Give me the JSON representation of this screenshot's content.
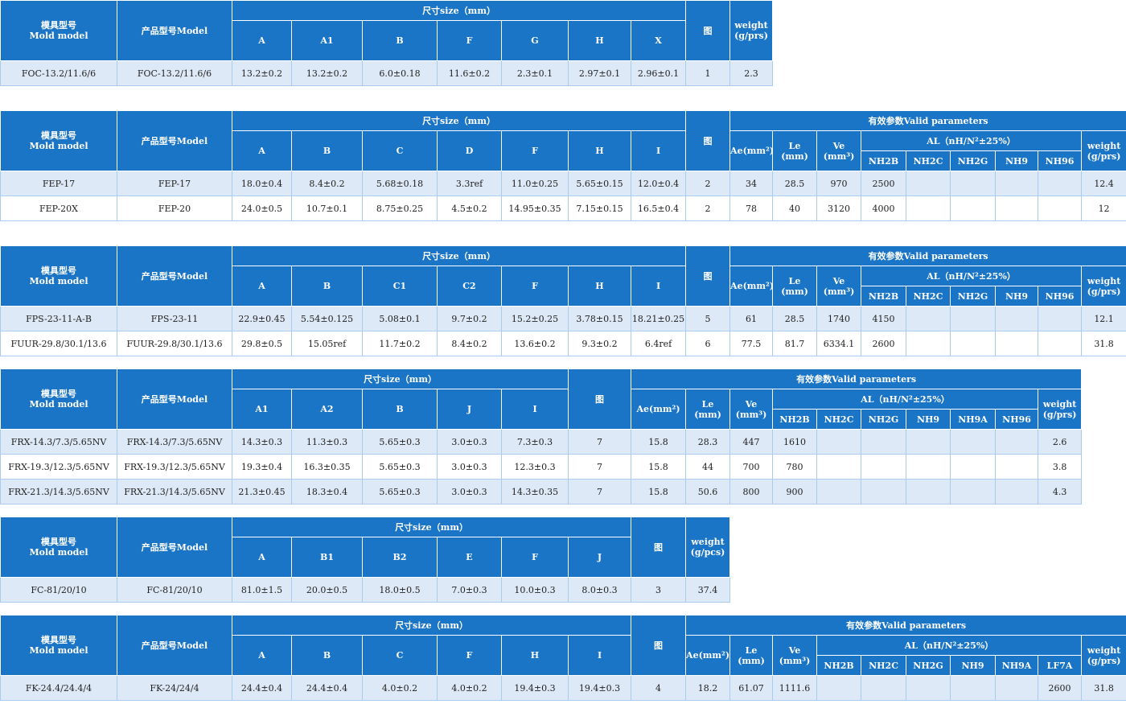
{
  "tables": [
    {
      "mold_header": [
        "模具型号",
        "Mold model"
      ],
      "model_header": "产品型号Model",
      "size_header": "尺寸size（mm）",
      "dims": [
        "A",
        "A1",
        "B",
        "F",
        "G",
        "H",
        "X"
      ],
      "fig_header": "图",
      "weight_header": [
        "weight",
        "(g/prs)"
      ],
      "rows": [
        {
          "mold": "FOC-13.2/11.6/6",
          "model": "FOC-13.2/11.6/6",
          "dims": [
            "13.2±0.2",
            "13.2±0.2",
            "6.0±0.18",
            "11.6±0.2",
            "2.3±0.1",
            "2.97±0.1",
            "2.96±0.1"
          ],
          "fig": "1",
          "weight": "2.3"
        }
      ]
    },
    {
      "mold_header": [
        "模具型号",
        "Mold model"
      ],
      "model_header": "产品型号Model",
      "size_header": "尺寸size（mm）",
      "dims": [
        "A",
        "B",
        "C",
        "D",
        "F",
        "H",
        "I"
      ],
      "fig_header": "图",
      "params_header": "有效参数Valid parameters",
      "param_headers": [
        [
          "Ae(mm²)"
        ],
        [
          "Le",
          "(mm)"
        ],
        [
          "Ve",
          "(mm³)"
        ]
      ],
      "al_header": "AL（nH/N²±25%）",
      "al_cols": [
        "NH2B",
        "NH2C",
        "NH2G",
        "NH9",
        "NH96"
      ],
      "weight_header": [
        "weight",
        "(g/prs)"
      ],
      "rows": [
        {
          "mold": "FEP-17",
          "model": "FEP-17",
          "dims": [
            "18.0±0.4",
            "8.4±0.2",
            "5.68±0.18",
            "3.3ref",
            "11.0±0.25",
            "5.65±0.15",
            "12.0±0.4"
          ],
          "fig": "2",
          "params": [
            "34",
            "28.5",
            "970"
          ],
          "al": [
            "2500",
            null,
            null,
            null,
            null
          ],
          "weight": "12.4"
        },
        {
          "mold": "FEP-20X",
          "model": "FEP-20",
          "dims": [
            "24.0±0.5",
            "10.7±0.1",
            "8.75±0.25",
            "4.5±0.2",
            "14.95±0.35",
            "7.15±0.15",
            "16.5±0.4"
          ],
          "fig": "2",
          "params": [
            "78",
            "40",
            "3120"
          ],
          "al": [
            "4000",
            null,
            null,
            null,
            null
          ],
          "weight": "12"
        }
      ]
    },
    {
      "mold_header": [
        "模具型号",
        "Mold model"
      ],
      "model_header": "产品型号Model",
      "size_header": "尺寸size（mm）",
      "dims": [
        "A",
        "B",
        "C1",
        "C2",
        "F",
        "H",
        "I"
      ],
      "fig_header": "图",
      "params_header": "有效参数Valid parameters",
      "param_headers": [
        [
          "Ae(mm²)"
        ],
        [
          "Le",
          "(mm)"
        ],
        [
          "Ve",
          "(mm³)"
        ]
      ],
      "al_header": "AL（nH/N²±25%）",
      "al_cols": [
        "NH2B",
        "NH2C",
        "NH2G",
        "NH9",
        "NH96"
      ],
      "weight_header": [
        "weight",
        "(g/prs)"
      ],
      "rows": [
        {
          "mold": "FPS-23-11-A-B",
          "model": "FPS-23-11",
          "dims": [
            "22.9±0.45",
            "5.54±0.125",
            "5.08±0.1",
            "9.7±0.2",
            "15.2±0.25",
            "3.78±0.15",
            "18.21±0.25"
          ],
          "fig": "5",
          "params": [
            "61",
            "28.5",
            "1740"
          ],
          "al": [
            "4150",
            null,
            null,
            null,
            null
          ],
          "weight": "12.1"
        },
        {
          "mold": "FUUR-29.8/30.1/13.6",
          "model": "FUUR-29.8/30.1/13.6",
          "dims": [
            "29.8±0.5",
            "15.05ref",
            "11.7±0.2",
            "8.4±0.2",
            "13.6±0.2",
            "9.3±0.2",
            "6.4ref"
          ],
          "fig": "6",
          "params": [
            "77.5",
            "81.7",
            "6334.1"
          ],
          "al": [
            "2600",
            null,
            null,
            null,
            null
          ],
          "weight": "31.8"
        }
      ]
    },
    {
      "mold_header": [
        "模具型号",
        "Mold model"
      ],
      "model_header": "产品型号Model",
      "size_header": "尺寸size（mm）",
      "dims": [
        "A1",
        "A2",
        "B",
        "J",
        "I"
      ],
      "fig_header": "图",
      "params_header": "有效参数Valid parameters",
      "param_headers": [
        [
          "Ae(mm²)"
        ],
        [
          "Le",
          "(mm)"
        ],
        [
          "Ve",
          "(mm³)"
        ]
      ],
      "al_header": "AL（nH/N²±25%）",
      "al_cols": [
        "NH2B",
        "NH2C",
        "NH2G",
        "NH9",
        "NH9A",
        "NH96"
      ],
      "weight_header": [
        "weight",
        "(g/prs)"
      ],
      "rows": [
        {
          "mold": "FRX-14.3/7.3/5.65NV",
          "model": "FRX-14.3/7.3/5.65NV",
          "dims": [
            "14.3±0.3",
            "11.3±0.3",
            "5.65±0.3",
            "3.0±0.3",
            "7.3±0.3"
          ],
          "fig": "7",
          "params": [
            "15.8",
            "28.3",
            "447"
          ],
          "al": [
            "1610",
            null,
            null,
            null,
            null,
            null
          ],
          "weight": "2.6"
        },
        {
          "mold": "FRX-19.3/12.3/5.65NV",
          "model": "FRX-19.3/12.3/5.65NV",
          "dims": [
            "19.3±0.4",
            "16.3±0.35",
            "5.65±0.3",
            "3.0±0.3",
            "12.3±0.3"
          ],
          "fig": "7",
          "params": [
            "15.8",
            "44",
            "700"
          ],
          "al": [
            "780",
            null,
            null,
            null,
            null,
            null
          ],
          "weight": "3.8"
        },
        {
          "mold": "FRX-21.3/14.3/5.65NV",
          "model": "FRX-21.3/14.3/5.65NV",
          "dims": [
            "21.3±0.45",
            "18.3±0.4",
            "5.65±0.3",
            "3.0±0.3",
            "14.3±0.35"
          ],
          "fig": "7",
          "params": [
            "15.8",
            "50.6",
            "800"
          ],
          "al": [
            "900",
            null,
            null,
            null,
            null,
            null
          ],
          "weight": "4.3"
        }
      ]
    },
    {
      "mold_header": [
        "模具型号",
        "Mold model"
      ],
      "model_header": "产品型号Model",
      "size_header": "尺寸size（mm）",
      "dims": [
        "A",
        "B1",
        "B2",
        "E",
        "F",
        "J"
      ],
      "fig_header": "图",
      "weight_header": [
        "weight",
        "(g/pcs)"
      ],
      "rows": [
        {
          "mold": "FC-81/20/10",
          "model": "FC-81/20/10",
          "dims": [
            "81.0±1.5",
            "20.0±0.5",
            "18.0±0.5",
            "7.0±0.3",
            "10.0±0.3",
            "8.0±0.3"
          ],
          "fig": "3",
          "weight": "37.4"
        }
      ]
    },
    {
      "mold_header": [
        "模具型号",
        "Mold model"
      ],
      "model_header": "产品型号Model",
      "size_header": "尺寸size（mm）",
      "dims": [
        "A",
        "B",
        "C",
        "F",
        "H",
        "I"
      ],
      "fig_header": "图",
      "params_header": "有效参数Valid parameters",
      "param_headers": [
        [
          "Ae(mm²)"
        ],
        [
          "Le",
          "(mm)"
        ],
        [
          "Ve",
          "(mm³)"
        ]
      ],
      "al_header": "AL（nH/N²±25%）",
      "al_cols": [
        "NH2B",
        "NH2C",
        "NH2G",
        "NH9",
        "NH9A",
        "LF7A"
      ],
      "weight_header": [
        "weight",
        "(g/prs)"
      ],
      "rows": [
        {
          "mold": "FK-24.4/24.4/4",
          "model": "FK-24/24/4",
          "dims": [
            "24.4±0.4",
            "24.4±0.4",
            "4.0±0.2",
            "4.0±0.2",
            "19.4±0.3",
            "19.4±0.3"
          ],
          "fig": "4",
          "params": [
            "18.2",
            "61.07",
            "1111.6"
          ],
          "al": [
            null,
            null,
            null,
            null,
            null,
            "2600"
          ],
          "weight": "31.8"
        }
      ]
    }
  ]
}
